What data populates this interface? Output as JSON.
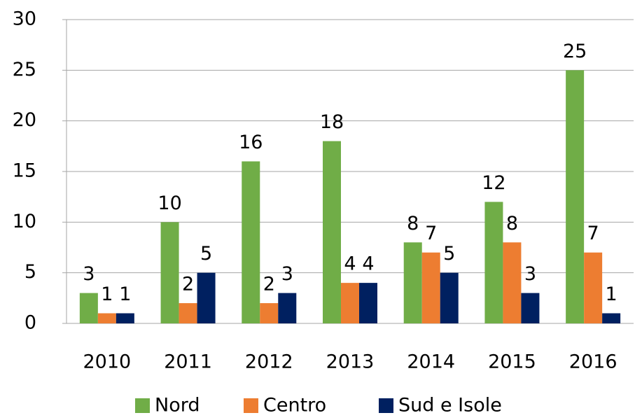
{
  "chart_data": {
    "type": "bar",
    "categories": [
      "2010",
      "2011",
      "2012",
      "2013",
      "2014",
      "2015",
      "2016"
    ],
    "series": [
      {
        "name": "Nord",
        "color": "#70ad47",
        "values": [
          3,
          10,
          16,
          18,
          8,
          12,
          25
        ]
      },
      {
        "name": "Centro",
        "color": "#ed7d31",
        "values": [
          1,
          2,
          2,
          4,
          7,
          8,
          7
        ]
      },
      {
        "name": "Sud e Isole",
        "color": "#002060",
        "values": [
          1,
          5,
          3,
          4,
          5,
          3,
          1
        ]
      }
    ],
    "ylim": [
      0,
      30
    ],
    "yticks": [
      0,
      5,
      10,
      15,
      20,
      25,
      30
    ],
    "grid": true,
    "legend": "bottom"
  }
}
